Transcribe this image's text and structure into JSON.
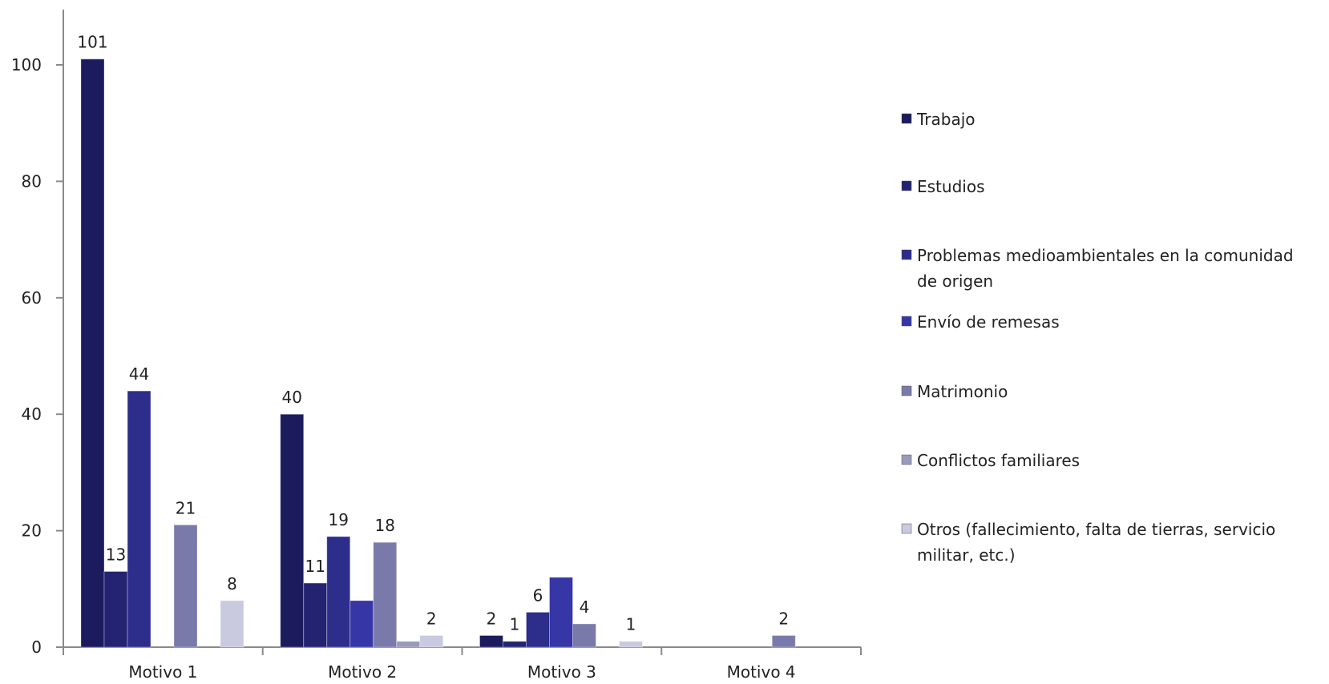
{
  "chart_data": {
    "type": "bar",
    "title": "",
    "xlabel": "",
    "ylabel": "",
    "ylim": [
      0,
      110
    ],
    "yticks": [
      0,
      20,
      40,
      60,
      80,
      100
    ],
    "categories": [
      "Motivo 1",
      "Motivo 2",
      "Motivo 3",
      "Motivo 4"
    ],
    "grid": false,
    "legend_position": "right",
    "series": [
      {
        "name": "Trabajo",
        "color": "#1b1b5e",
        "values": [
          101,
          40,
          2,
          0
        ],
        "labels": [
          "101",
          "40",
          "2",
          ""
        ]
      },
      {
        "name": "Estudios",
        "color": "#232372",
        "values": [
          13,
          11,
          1,
          0
        ],
        "labels": [
          "13",
          "11",
          "1",
          ""
        ]
      },
      {
        "name": "Problemas medioambientales en la comunidad de origen",
        "color": "#2d2d8c",
        "values": [
          44,
          19,
          6,
          0
        ],
        "labels": [
          "44",
          "19",
          "6",
          ""
        ]
      },
      {
        "name": "Envío de remesas",
        "color": "#3636a6",
        "values": [
          0,
          8,
          12,
          0
        ],
        "labels": [
          "",
          "",
          "",
          ""
        ]
      },
      {
        "name": "Matrimonio",
        "color": "#7a7aaa",
        "values": [
          21,
          18,
          4,
          2
        ],
        "labels": [
          "21",
          "18",
          "4",
          "2"
        ]
      },
      {
        "name": "Conflictos familiares",
        "color": "#9a9abc",
        "values": [
          0,
          1,
          0,
          0
        ],
        "labels": [
          "",
          "",
          "",
          ""
        ]
      },
      {
        "name": "Otros (fallecimiento, falta de tierras, servicio militar, etc.)",
        "color": "#c9c9e0",
        "values": [
          8,
          2,
          1,
          0
        ],
        "labels": [
          "8",
          "2",
          "1",
          ""
        ]
      }
    ],
    "legend_lines": [
      [
        "Trabajo"
      ],
      [
        "Estudios"
      ],
      [
        "Problemas medioambientales en la comunidad",
        "de origen"
      ],
      [
        "Envío de remesas"
      ],
      [
        "Matrimonio"
      ],
      [
        "Conflictos familiares"
      ],
      [
        "Otros (fallecimiento, falta de tierras, servicio",
        "militar, etc.)"
      ]
    ]
  }
}
